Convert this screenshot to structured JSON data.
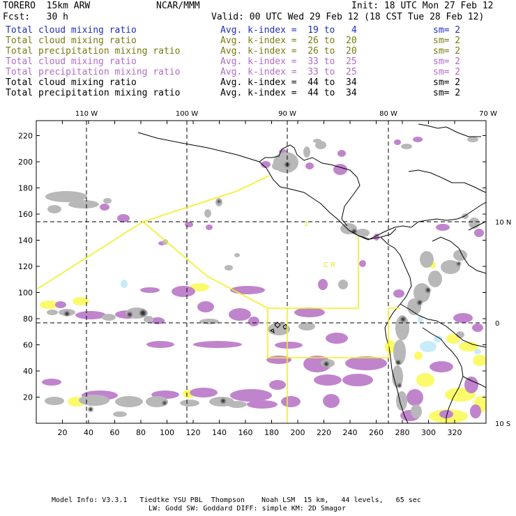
{
  "header": {
    "model": "TORERO  15km ARW",
    "org": "NCAR/MMM",
    "init": "Init: 18 UTC Mon 27 Feb 12",
    "fcst": "Fcst:   30 h",
    "valid": "Valid: 00 UTC Wed 29 Feb 12 (18 CST Tue 28 Feb 12)"
  },
  "legend": [
    {
      "name": "Total cloud mixing ratio",
      "kindex": "Avg. k-index =  19 to   4",
      "sm": "sm= 2",
      "color": "#1f2fbf"
    },
    {
      "name": "Total cloud mixing ratio",
      "kindex": "Avg. k-index =  26 to  20",
      "sm": "sm= 2",
      "color": "#7a7a10"
    },
    {
      "name": "Total precipitation mixing ratio",
      "kindex": "Avg. k-index =  26 to  20",
      "sm": "sm= 2",
      "color": "#7a7a10"
    },
    {
      "name": "Total cloud mixing ratio",
      "kindex": "Avg. k-index =  33 to  25",
      "sm": "sm= 2",
      "color": "#b36bc8"
    },
    {
      "name": "Total precipitation mixing ratio",
      "kindex": "Avg. k-index =  33 to  25",
      "sm": "sm= 2",
      "color": "#b36bc8"
    },
    {
      "name": "Total cloud mixing ratio",
      "kindex": "Avg. k-index =  44 to  34",
      "sm": "sm= 2",
      "color": "#000000"
    },
    {
      "name": "Total precipitation mixing ratio",
      "kindex": "Avg. k-index =  44 to  34",
      "sm": "sm= 2",
      "color": "#000000"
    }
  ],
  "map": {
    "lon_labels": [
      "110 W",
      "100 W",
      "90 W",
      "80 W",
      "70 W"
    ],
    "lat_labels": [
      "10 N",
      "0",
      "10 S"
    ],
    "x_ticks": [
      "20",
      "40",
      "60",
      "80",
      "100",
      "120",
      "140",
      "160",
      "180",
      "200",
      "220",
      "240",
      "260",
      "280",
      "300",
      "320"
    ],
    "y_ticks": [
      "20",
      "40",
      "60",
      "80",
      "100",
      "120",
      "140",
      "160",
      "180",
      "200",
      "220"
    ],
    "box_labels": [
      "1",
      "C R"
    ],
    "colors": {
      "cloud_gray": "#b8b8b8",
      "dark_core": "#303030",
      "purple": "#c084cc",
      "yellow": "#fbfa6a",
      "light_blue": "#c7ecf8",
      "domain_outline": "#f2f01a",
      "coast": "#000000"
    }
  },
  "footer": {
    "line1": "Model Info: V3.3.1   Tiedtke YSU PBL  Thompson    Noah LSM  15 km,   44 levels,   65 sec",
    "line2": "LW: Godd SW: Goddard DIFF: simple KM: 2D Smagor"
  }
}
